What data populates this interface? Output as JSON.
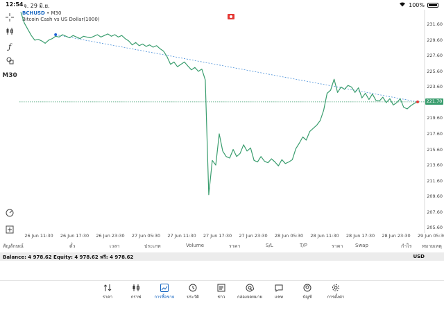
{
  "status": {
    "time": "12:54",
    "date": "จ. 29 มิ.ย.",
    "battery": "100%"
  },
  "symbol": {
    "name": "BCHUSD",
    "timeframe": "M30",
    "description": "Bitcoin Cash vs US Dollar(1000)"
  },
  "toolbar": {
    "timeframe_label": "M30"
  },
  "chart_data": {
    "type": "line",
    "x_labels": [
      "26 Jun 11:30",
      "26 Jun 17:30",
      "26 Jun 23:30",
      "27 Jun 05:30",
      "27 Jun 11:30",
      "27 Jun 17:30",
      "27 Jun 23:30",
      "28 Jun 05:30",
      "28 Jun 11:30",
      "28 Jun 17:30",
      "28 Jun 23:30",
      "29 Jun 05:30"
    ],
    "y_ticks": [
      "231.60",
      "229.60",
      "227.60",
      "225.60",
      "223.60",
      "221.60",
      "219.60",
      "217.60",
      "215.60",
      "213.60",
      "211.60",
      "209.60",
      "207.60",
      "205.60"
    ],
    "ylim": [
      204.9,
      233.5
    ],
    "values": [
      233.2,
      231.8,
      231.0,
      230.2,
      229.6,
      229.7,
      229.5,
      229.2,
      229.6,
      229.8,
      230.1,
      230.0,
      230.3,
      230.1,
      229.9,
      230.2,
      230.0,
      229.8,
      230.1,
      230.0,
      229.9,
      230.1,
      230.3,
      230.0,
      230.2,
      230.4,
      230.1,
      230.3,
      230.0,
      230.2,
      229.8,
      229.5,
      229.0,
      229.3,
      228.9,
      229.1,
      228.8,
      229.0,
      228.7,
      228.9,
      228.5,
      228.2,
      227.5,
      226.5,
      226.8,
      226.2,
      226.5,
      226.8,
      226.3,
      225.8,
      226.1,
      225.6,
      225.9,
      224.5,
      209.8,
      214.2,
      213.6,
      217.6,
      215.4,
      214.7,
      214.5,
      215.6,
      214.7,
      215.1,
      216.2,
      215.4,
      215.8,
      214.2,
      214.0,
      214.7,
      214.1,
      213.9,
      214.4,
      214.0,
      213.5,
      214.3,
      213.8,
      214.0,
      214.3,
      215.7,
      216.4,
      217.2,
      216.8,
      217.9,
      218.3,
      218.7,
      219.3,
      220.6,
      222.8,
      223.2,
      224.6,
      222.9,
      223.6,
      223.3,
      223.8,
      223.6,
      222.9,
      223.5,
      222.2,
      222.8,
      222.0,
      222.7,
      221.9,
      221.8,
      222.3,
      221.6,
      222.1,
      221.3,
      221.6,
      222.1,
      221.0,
      220.8,
      221.2,
      221.5,
      221.7
    ],
    "trendline": {
      "start_index": 10,
      "start_value": 230.3,
      "end_value": 221.7
    },
    "current_price": "221.70",
    "color_line": "#3a9d6e",
    "color_trend": "#4a90d9",
    "current_price_line": "dashed",
    "grid": false
  },
  "table_headers": [
    "สัญลักษณ์",
    "ตั๋ว",
    "เวลา",
    "ประเภท",
    "Volume",
    "ราคา",
    "S/L",
    "T/P",
    "ราคา",
    "Swap",
    "กำไร",
    "หมายเหตุ"
  ],
  "balance": {
    "text": "Balance: 4 978.62 Equity: 4 978.62 ฟรี: 4 978.62",
    "currency": "USD"
  },
  "tabs": [
    {
      "label": "ราคา",
      "icon": "quotes-icon"
    },
    {
      "label": "กราฟ",
      "icon": "candles-icon"
    },
    {
      "label": "การซื้อขาย",
      "icon": "trade-icon",
      "active": true
    },
    {
      "label": "ประวัติ",
      "icon": "history-icon"
    },
    {
      "label": "ข่าว",
      "icon": "news-icon"
    },
    {
      "label": "กล่องจดหมาย",
      "icon": "mailbox-icon"
    },
    {
      "label": "แชท",
      "icon": "chat-icon"
    },
    {
      "label": "บัญชี",
      "icon": "account-icon"
    },
    {
      "label": "การตั้งค่า",
      "icon": "settings-icon"
    }
  ]
}
